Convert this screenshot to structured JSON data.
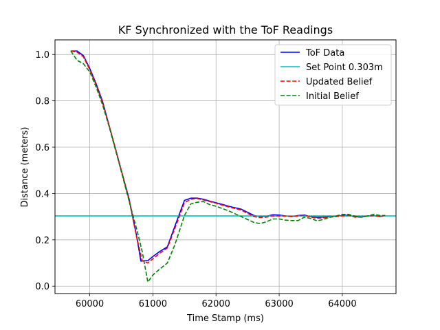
{
  "chart_data": {
    "type": "line",
    "title": "KF Synchronized with the ToF Readings",
    "xlabel": "Time Stamp (ms)",
    "ylabel": "Distance (meters)",
    "xlim": [
      59450,
      64850
    ],
    "ylim": [
      -0.032,
      1.063
    ],
    "xticks": [
      60000,
      61000,
      62000,
      63000,
      64000
    ],
    "xtick_labels": [
      "60000",
      "61000",
      "62000",
      "63000",
      "64000"
    ],
    "yticks": [
      0.0,
      0.2,
      0.4,
      0.6,
      0.8,
      1.0
    ],
    "ytick_labels": [
      "0.0",
      "0.2",
      "0.4",
      "0.6",
      "0.8",
      "1.0"
    ],
    "grid": true,
    "legend_position": "top-right",
    "series": [
      {
        "name": "ToF Data",
        "color": "#0000ff",
        "style": "solid",
        "x": [
          59700,
          59800,
          59900,
          60000,
          60100,
          60200,
          60300,
          60400,
          60500,
          60620,
          60740,
          60810,
          60920,
          61000,
          61100,
          61230,
          61350,
          61500,
          61600,
          61700,
          61800,
          61900,
          62000,
          62100,
          62200,
          62400,
          62600,
          62700,
          62800,
          62900,
          63000,
          63100,
          63200,
          63300,
          63400,
          63500,
          63600,
          63700,
          63800,
          63900,
          64000,
          64100,
          64200,
          64300,
          64400,
          64500,
          64600,
          64680
        ],
        "y": [
          1.015,
          1.015,
          0.995,
          0.94,
          0.875,
          0.8,
          0.7,
          0.6,
          0.5,
          0.38,
          0.22,
          0.108,
          0.11,
          0.128,
          0.148,
          0.17,
          0.26,
          0.37,
          0.38,
          0.38,
          0.375,
          0.367,
          0.36,
          0.353,
          0.345,
          0.332,
          0.305,
          0.3,
          0.302,
          0.308,
          0.307,
          0.303,
          0.3,
          0.305,
          0.307,
          0.3,
          0.297,
          0.298,
          0.3,
          0.302,
          0.305,
          0.306,
          0.3,
          0.298,
          0.303,
          0.304,
          0.3,
          0.305
        ]
      },
      {
        "name": "Set Point 0.303m",
        "color": "#00bfbf",
        "style": "solid",
        "x": [
          59450,
          64850
        ],
        "y": [
          0.303,
          0.303
        ]
      },
      {
        "name": "Updated Belief",
        "color": "#ff0000",
        "style": "dashed",
        "x": [
          59700,
          59800,
          59900,
          60000,
          60100,
          60200,
          60300,
          60400,
          60500,
          60620,
          60740,
          60830,
          60920,
          61000,
          61100,
          61230,
          61350,
          61500,
          61600,
          61700,
          61800,
          61900,
          62000,
          62100,
          62200,
          62400,
          62600,
          62700,
          62800,
          62900,
          63000,
          63100,
          63200,
          63300,
          63400,
          63500,
          63600,
          63700,
          63800,
          63900,
          64000,
          64100,
          64200,
          64300,
          64400,
          64500,
          64600,
          64680
        ],
        "y": [
          1.015,
          1.01,
          0.99,
          0.935,
          0.87,
          0.795,
          0.7,
          0.6,
          0.5,
          0.375,
          0.215,
          0.11,
          0.1,
          0.118,
          0.14,
          0.165,
          0.25,
          0.36,
          0.375,
          0.378,
          0.372,
          0.365,
          0.358,
          0.35,
          0.342,
          0.328,
          0.3,
          0.296,
          0.298,
          0.303,
          0.303,
          0.302,
          0.3,
          0.303,
          0.306,
          0.298,
          0.293,
          0.295,
          0.298,
          0.3,
          0.303,
          0.305,
          0.298,
          0.298,
          0.302,
          0.305,
          0.3,
          0.305
        ]
      },
      {
        "name": "Initial Belief",
        "color": "#008000",
        "style": "dashed",
        "x": [
          59700,
          59800,
          59900,
          60000,
          60100,
          60200,
          60300,
          60400,
          60500,
          60620,
          60740,
          60830,
          60920,
          61000,
          61100,
          61230,
          61350,
          61500,
          61600,
          61700,
          61800,
          61900,
          62000,
          62100,
          62200,
          62400,
          62600,
          62700,
          62800,
          62900,
          63000,
          63100,
          63200,
          63300,
          63400,
          63500,
          63600,
          63700,
          63800,
          63900,
          64000,
          64100,
          64200,
          64300,
          64400,
          64500,
          64600,
          64680
        ],
        "y": [
          1.015,
          0.975,
          0.96,
          0.925,
          0.86,
          0.785,
          0.695,
          0.595,
          0.495,
          0.37,
          0.25,
          0.15,
          0.018,
          0.048,
          0.072,
          0.1,
          0.18,
          0.305,
          0.355,
          0.362,
          0.365,
          0.352,
          0.345,
          0.335,
          0.325,
          0.3,
          0.275,
          0.27,
          0.278,
          0.29,
          0.29,
          0.285,
          0.283,
          0.283,
          0.298,
          0.292,
          0.282,
          0.288,
          0.297,
          0.303,
          0.31,
          0.31,
          0.302,
          0.298,
          0.303,
          0.31,
          0.305,
          0.305
        ]
      }
    ]
  }
}
